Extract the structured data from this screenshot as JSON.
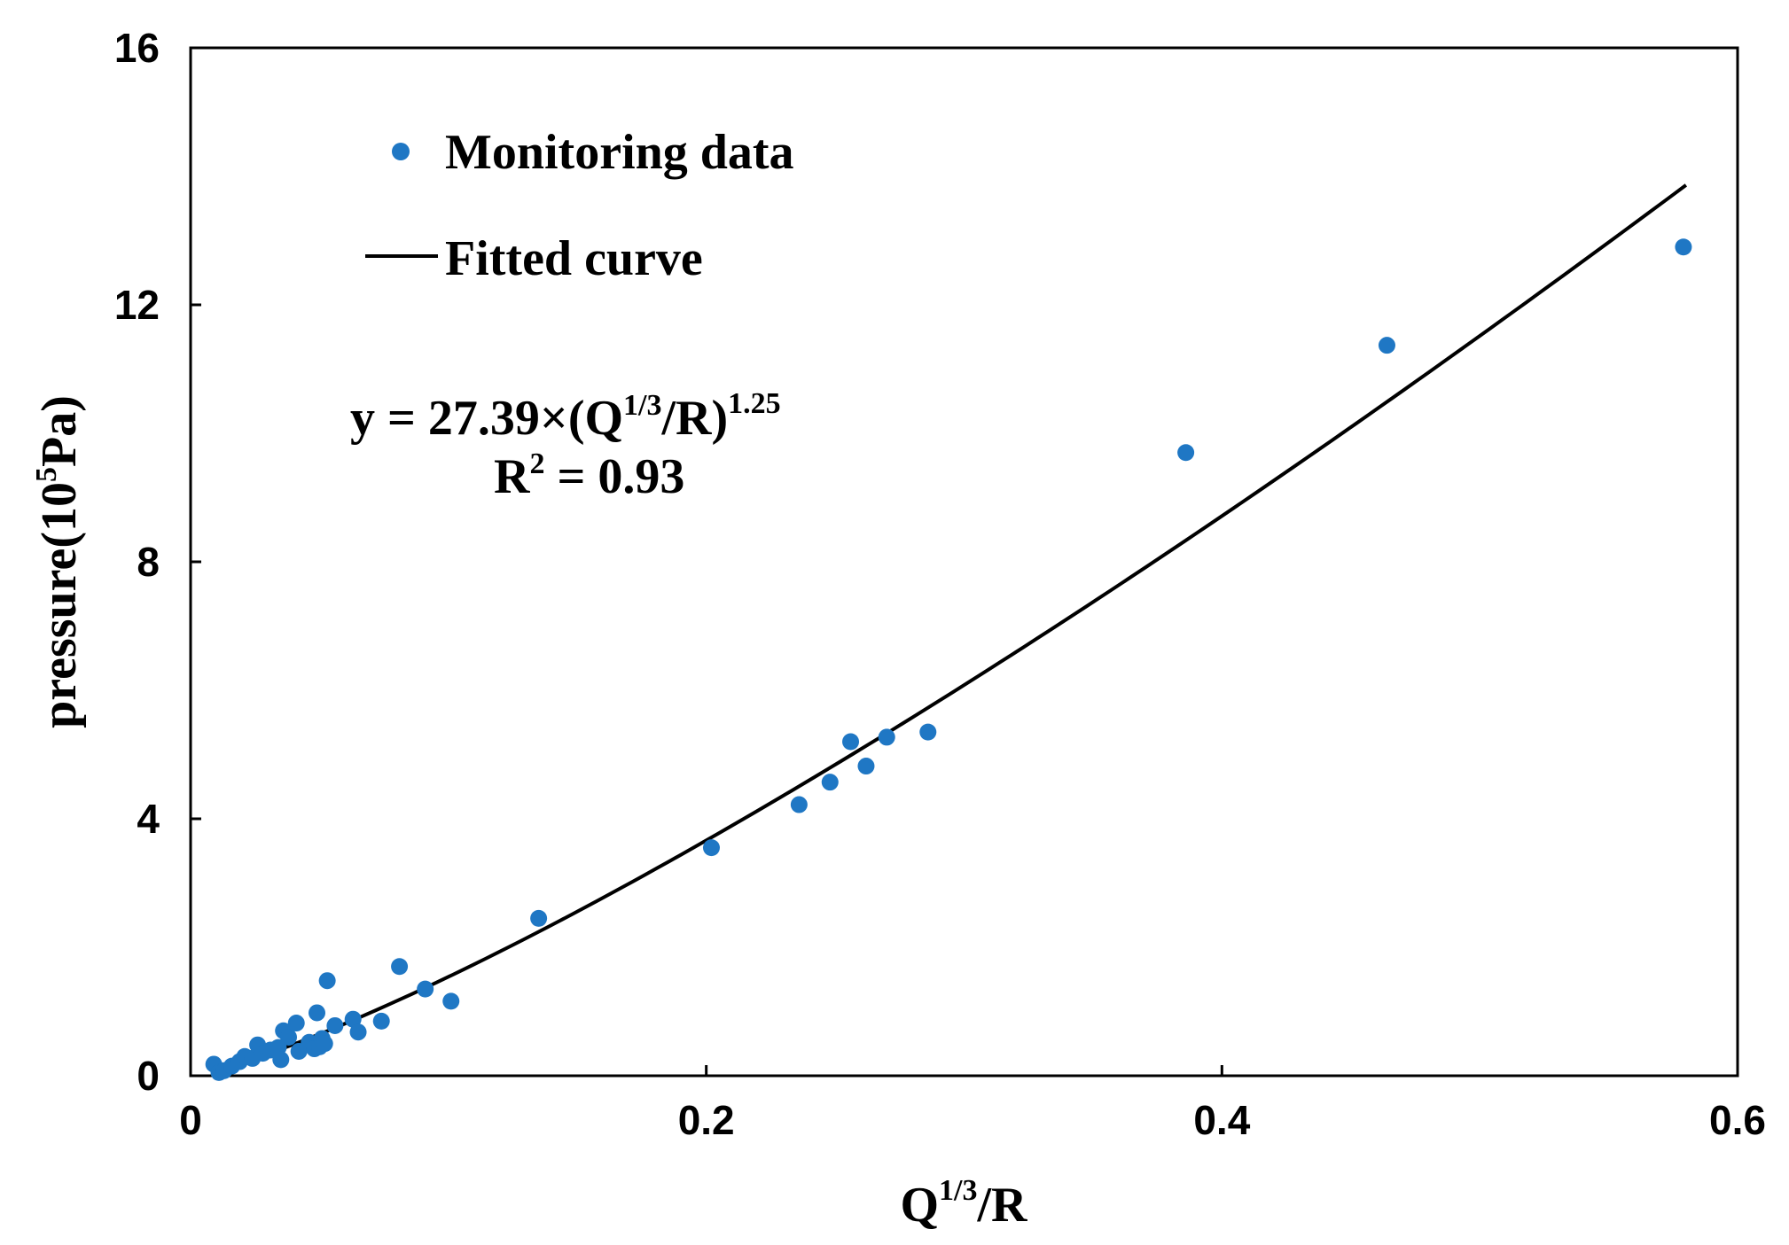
{
  "chart_data": {
    "type": "scatter",
    "title": "",
    "xlabel": {
      "base": "Q",
      "sup": "1/3",
      "tail": "/R"
    },
    "ylabel": {
      "pre": "pressure(10",
      "sup": "5",
      "post": "Pa)"
    },
    "xlim": [
      0,
      0.6
    ],
    "ylim": [
      0,
      16
    ],
    "xticks": [
      0,
      0.2,
      0.4,
      0.6
    ],
    "xtick_labels": [
      "0",
      "0.2",
      "0.4",
      "0.6"
    ],
    "yticks": [
      0,
      4,
      8,
      12,
      16
    ],
    "ytick_labels": [
      "0",
      "4",
      "8",
      "12",
      "16"
    ],
    "grid": false,
    "legend": {
      "position": "top-left",
      "entries": [
        {
          "label": "Monitoring data",
          "marker": "dot"
        },
        {
          "label": "Fitted curve",
          "marker": "line"
        }
      ]
    },
    "annotation": {
      "equation_prefix": "y = 27.39×(Q",
      "equation_sup1": "1/3",
      "equation_mid": "/R)",
      "equation_sup2": "1.25",
      "r2_prefix": "R",
      "r2_sup": "2",
      "r2_suffix": " = 0.93"
    },
    "colors": {
      "points": "#1f77c4",
      "curve": "#000000",
      "axis": "#000000"
    },
    "fit": {
      "coefficient": 27.39,
      "exponent": 1.25,
      "x_start": 0.01,
      "x_end": 0.58
    },
    "series": [
      {
        "name": "Monitoring data",
        "points": [
          [
            0.009,
            0.18
          ],
          [
            0.011,
            0.05
          ],
          [
            0.013,
            0.08
          ],
          [
            0.016,
            0.15
          ],
          [
            0.019,
            0.22
          ],
          [
            0.021,
            0.3
          ],
          [
            0.024,
            0.27
          ],
          [
            0.026,
            0.48
          ],
          [
            0.028,
            0.35
          ],
          [
            0.031,
            0.4
          ],
          [
            0.034,
            0.44
          ],
          [
            0.035,
            0.25
          ],
          [
            0.036,
            0.7
          ],
          [
            0.038,
            0.6
          ],
          [
            0.041,
            0.82
          ],
          [
            0.042,
            0.38
          ],
          [
            0.046,
            0.52
          ],
          [
            0.048,
            0.42
          ],
          [
            0.049,
            0.98
          ],
          [
            0.05,
            0.45
          ],
          [
            0.051,
            0.58
          ],
          [
            0.052,
            0.5
          ],
          [
            0.053,
            1.48
          ],
          [
            0.056,
            0.78
          ],
          [
            0.063,
            0.88
          ],
          [
            0.065,
            0.68
          ],
          [
            0.074,
            0.85
          ],
          [
            0.081,
            1.7
          ],
          [
            0.091,
            1.35
          ],
          [
            0.101,
            1.16
          ],
          [
            0.135,
            2.45
          ],
          [
            0.202,
            3.55
          ],
          [
            0.236,
            4.22
          ],
          [
            0.248,
            4.57
          ],
          [
            0.256,
            5.2
          ],
          [
            0.262,
            4.82
          ],
          [
            0.27,
            5.27
          ],
          [
            0.286,
            5.35
          ],
          [
            0.386,
            9.7
          ],
          [
            0.464,
            11.37
          ],
          [
            0.579,
            12.9
          ]
        ]
      }
    ]
  }
}
